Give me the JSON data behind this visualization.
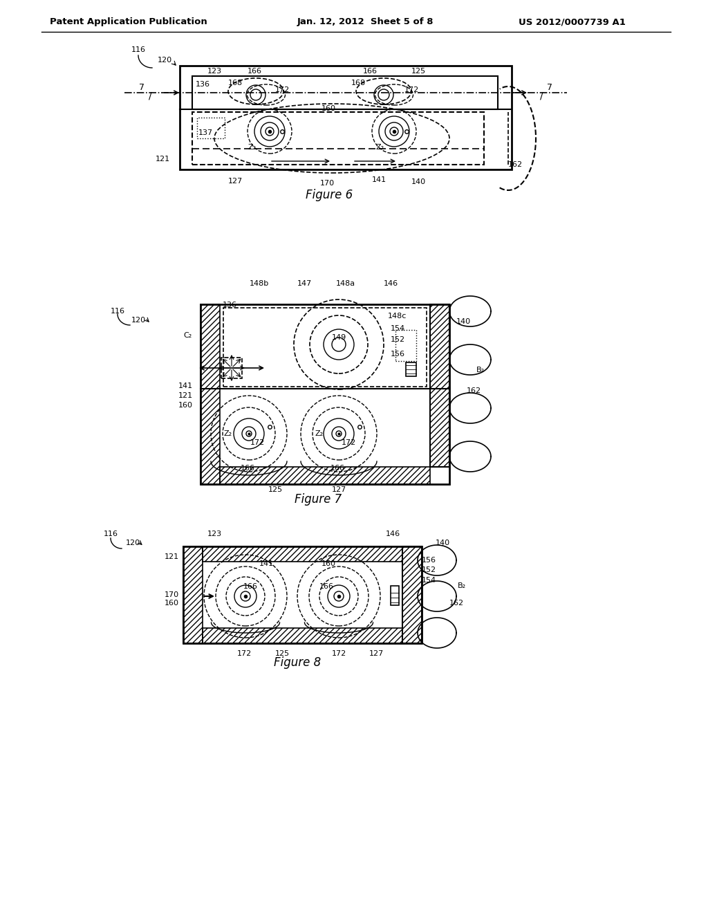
{
  "header_left": "Patent Application Publication",
  "header_center": "Jan. 12, 2012  Sheet 5 of 8",
  "header_right": "US 2012/0007739 A1",
  "fig6_caption": "Figure 6",
  "fig7_caption": "Figure 7",
  "fig8_caption": "Figure 8",
  "bg": "#ffffff"
}
